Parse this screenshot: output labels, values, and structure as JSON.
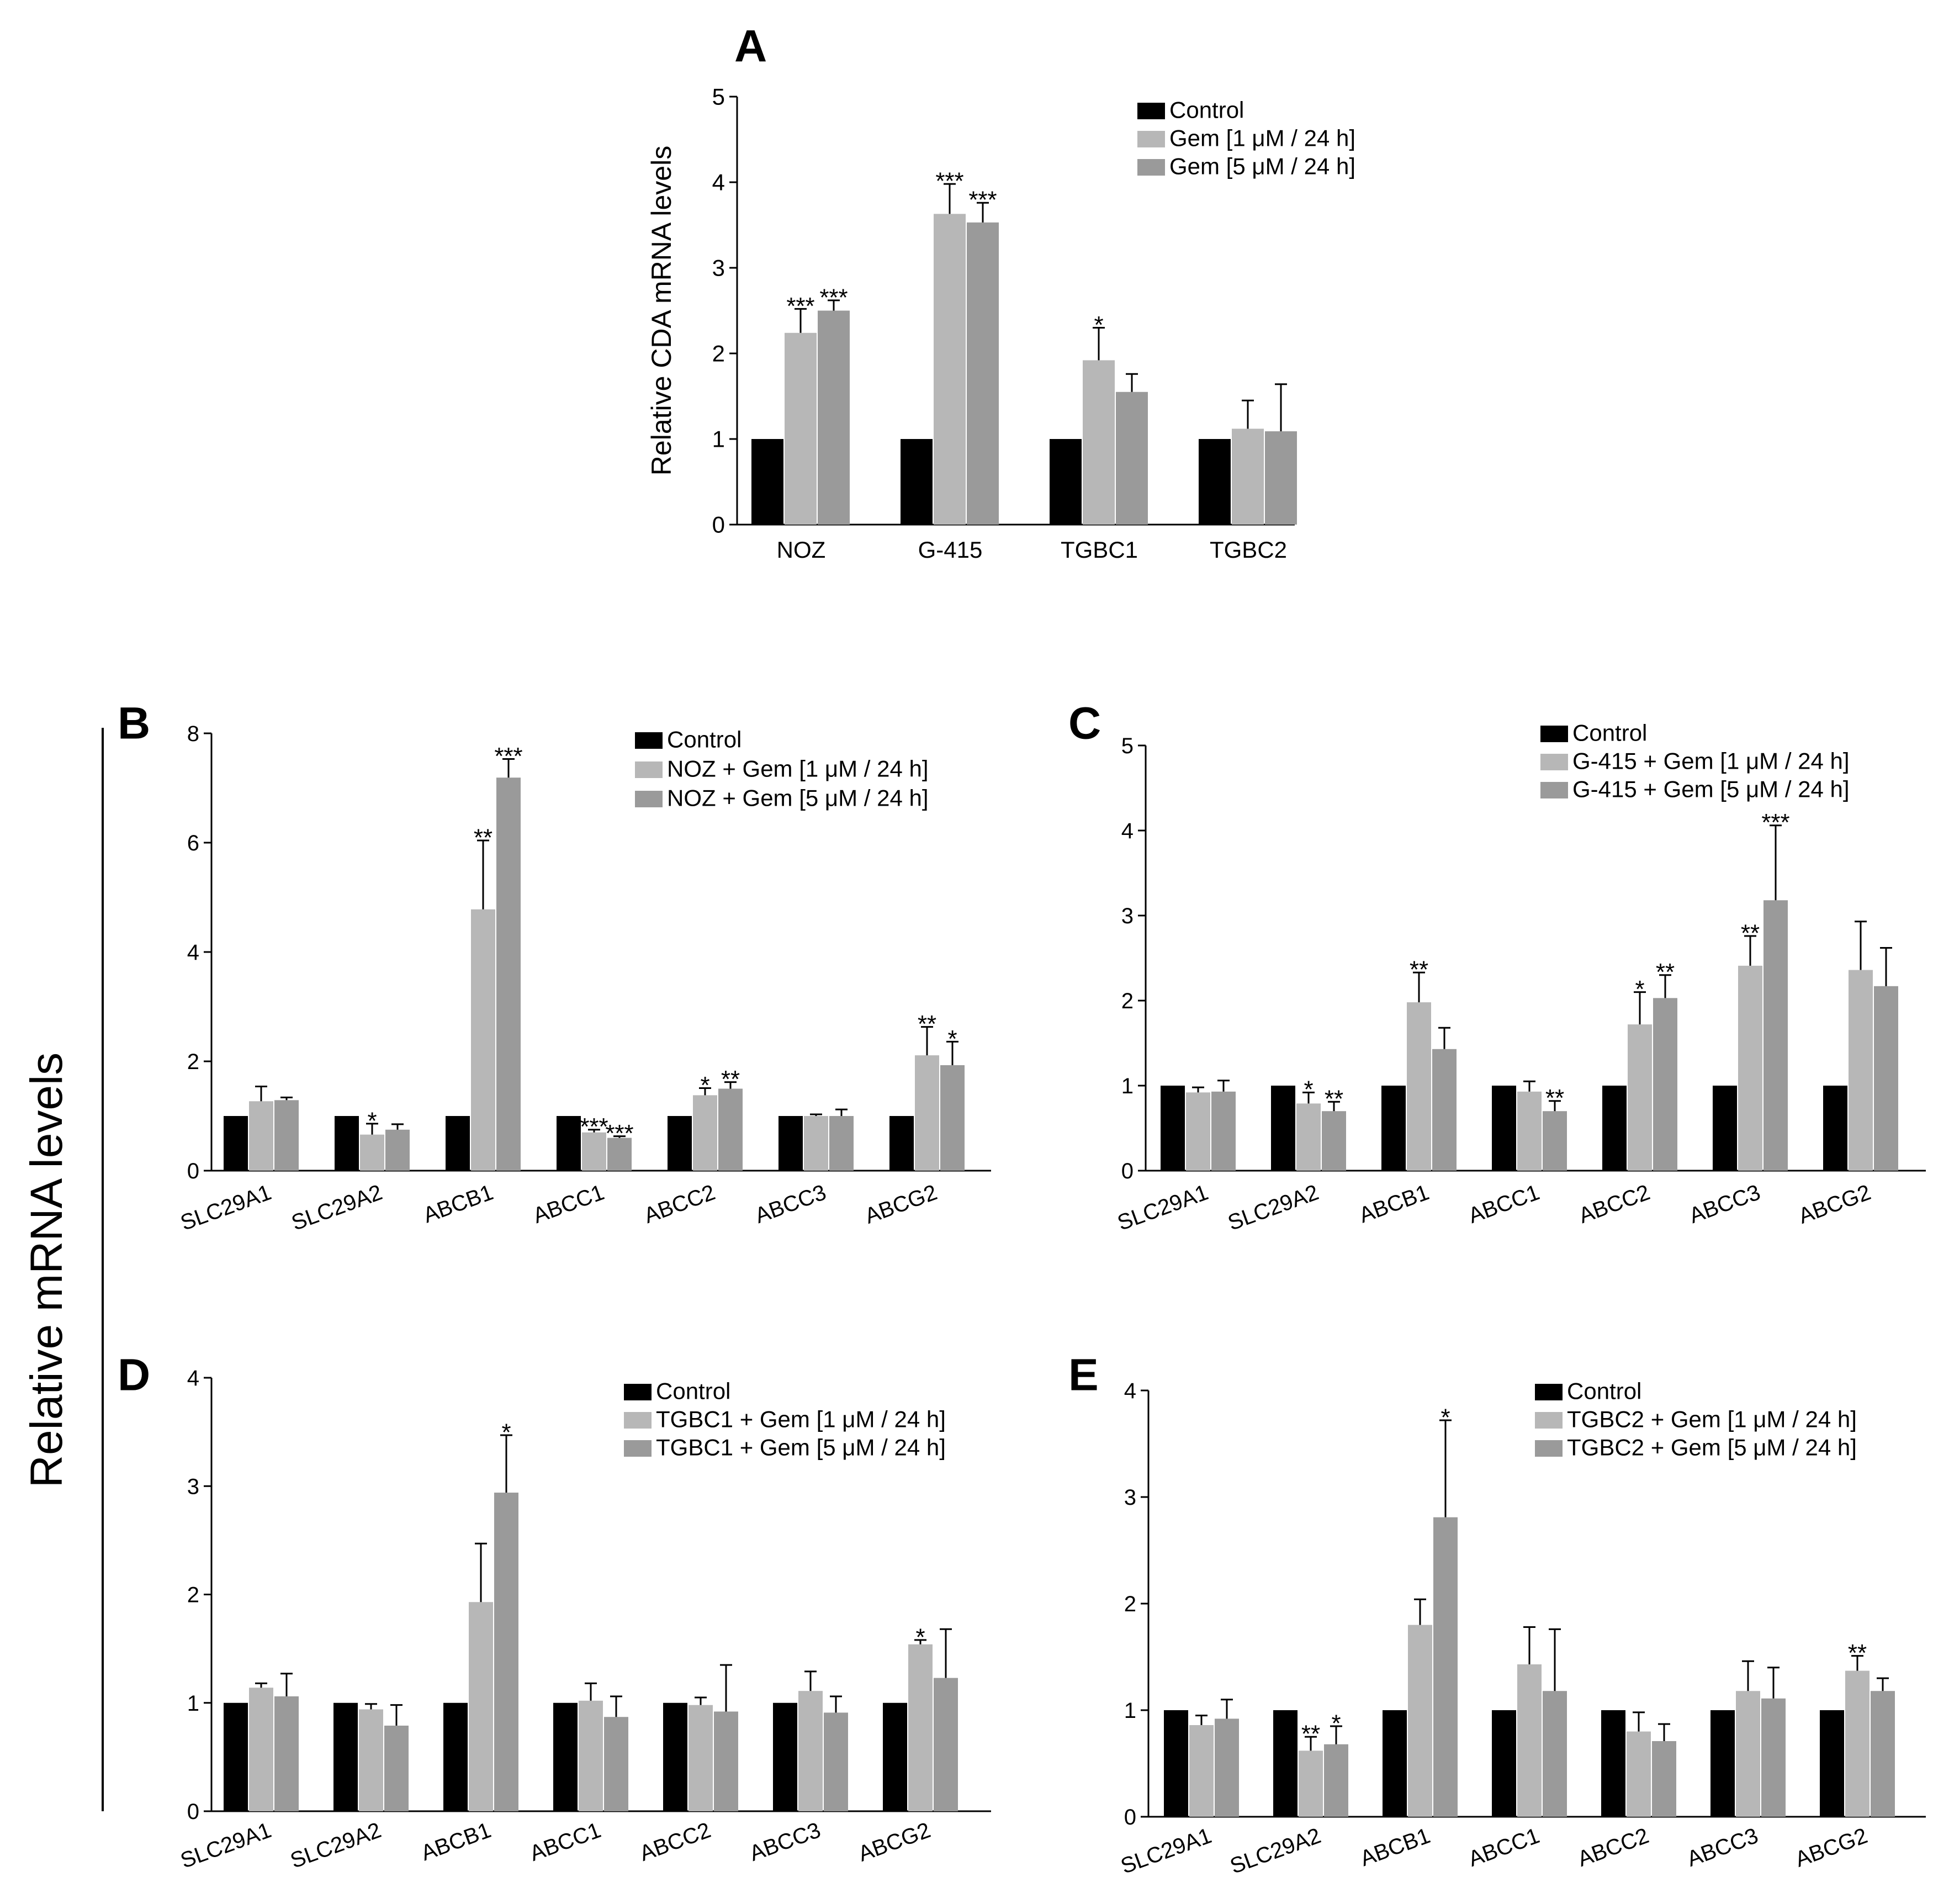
{
  "shared": {
    "ylabel": "Relative mRNA levels",
    "colors": [
      "#000000",
      "#b7b7b7",
      "#9a9a9a"
    ]
  },
  "chart_data": [
    {
      "panel": "A",
      "type": "bar",
      "ylabel": "Relative CDA mRNA levels",
      "ylim": [
        0,
        5
      ],
      "yticks": [
        0,
        1,
        2,
        3,
        4,
        5
      ],
      "categories": [
        "NOZ",
        "G-415",
        "TGBC1",
        "TGBC2"
      ],
      "series": [
        {
          "name": "Control",
          "values": [
            1,
            1,
            1,
            1
          ],
          "errors": [
            0,
            0,
            0,
            0
          ],
          "stars": [
            "",
            "",
            "",
            ""
          ]
        },
        {
          "name": "Gem [1 μM / 24 h]",
          "values": [
            2.24,
            3.63,
            1.92,
            1.12
          ],
          "errors": [
            0.28,
            0.35,
            0.38,
            0.33
          ],
          "stars": [
            "***",
            "***",
            "*",
            ""
          ]
        },
        {
          "name": "Gem [5 μM / 24 h]",
          "values": [
            2.5,
            3.53,
            1.55,
            1.09
          ],
          "errors": [
            0.12,
            0.23,
            0.21,
            0.55
          ],
          "stars": [
            "***",
            "***",
            "",
            ""
          ]
        }
      ],
      "legend_position": "top-right"
    },
    {
      "panel": "B",
      "type": "bar",
      "ylim": [
        0,
        8
      ],
      "yticks": [
        0,
        2,
        4,
        6,
        8
      ],
      "categories": [
        "SLC29A1",
        "SLC29A2",
        "ABCB1",
        "ABCC1",
        "ABCC2",
        "ABCC3",
        "ABCG2"
      ],
      "series": [
        {
          "name": "Control",
          "values": [
            1,
            1,
            1,
            1,
            1,
            1,
            1
          ],
          "errors": [
            0,
            0,
            0,
            0,
            0,
            0,
            0
          ],
          "stars": [
            "",
            "",
            "",
            "",
            "",
            "",
            ""
          ]
        },
        {
          "name": "NOZ + Gem [1 μM / 24 h]",
          "values": [
            1.27,
            0.66,
            4.78,
            0.7,
            1.38,
            1.0,
            2.11
          ],
          "errors": [
            0.27,
            0.2,
            1.26,
            0.05,
            0.13,
            0.03,
            0.52
          ],
          "stars": [
            "",
            "*",
            "**",
            "***",
            "*",
            "",
            "**"
          ]
        },
        {
          "name": "NOZ + Gem [5 μM / 24 h]",
          "values": [
            1.29,
            0.75,
            7.19,
            0.6,
            1.5,
            1.0,
            1.93
          ],
          "errors": [
            0.05,
            0.1,
            0.34,
            0.03,
            0.12,
            0.12,
            0.43
          ],
          "stars": [
            "",
            "",
            "***",
            "***",
            "**",
            "",
            "*"
          ]
        }
      ],
      "legend_position": "top-right"
    },
    {
      "panel": "C",
      "type": "bar",
      "ylim": [
        0,
        5
      ],
      "yticks": [
        0,
        1,
        2,
        3,
        4,
        5
      ],
      "categories": [
        "SLC29A1",
        "SLC29A2",
        "ABCB1",
        "ABCC1",
        "ABCC2",
        "ABCC3",
        "ABCG2"
      ],
      "series": [
        {
          "name": "Control",
          "values": [
            1,
            1,
            1,
            1,
            1,
            1,
            1
          ],
          "errors": [
            0,
            0,
            0,
            0,
            0,
            0,
            0
          ],
          "stars": [
            "",
            "",
            "",
            "",
            "",
            "",
            ""
          ]
        },
        {
          "name": "G-415 + Gem [1 μM / 24 h]",
          "values": [
            0.92,
            0.79,
            1.98,
            0.93,
            1.72,
            2.41,
            2.36
          ],
          "errors": [
            0.06,
            0.13,
            0.35,
            0.12,
            0.38,
            0.35,
            0.57
          ],
          "stars": [
            "",
            "*",
            "**",
            "",
            "*",
            "**",
            ""
          ]
        },
        {
          "name": "G-415 + Gem [5 μM / 24 h]",
          "values": [
            0.93,
            0.7,
            1.43,
            0.7,
            2.03,
            3.18,
            2.17
          ],
          "errors": [
            0.13,
            0.11,
            0.25,
            0.12,
            0.27,
            0.88,
            0.45
          ],
          "stars": [
            "",
            "**",
            "",
            "**",
            "**",
            "***",
            ""
          ]
        }
      ],
      "legend_position": "top-right"
    },
    {
      "panel": "D",
      "type": "bar",
      "ylim": [
        0,
        4
      ],
      "yticks": [
        0,
        1,
        2,
        3,
        4
      ],
      "categories": [
        "SLC29A1",
        "SLC29A2",
        "ABCB1",
        "ABCC1",
        "ABCC2",
        "ABCC3",
        "ABCG2"
      ],
      "series": [
        {
          "name": "Control",
          "values": [
            1,
            1,
            1,
            1,
            1,
            1,
            1
          ],
          "errors": [
            0,
            0,
            0,
            0,
            0,
            0,
            0
          ],
          "stars": [
            "",
            "",
            "",
            "",
            "",
            "",
            ""
          ]
        },
        {
          "name": "TGBC1 + Gem [1 μM / 24 h]",
          "values": [
            1.14,
            0.94,
            1.93,
            1.02,
            0.98,
            1.11,
            1.54
          ],
          "errors": [
            0.04,
            0.05,
            0.54,
            0.16,
            0.07,
            0.18,
            0.04
          ],
          "stars": [
            "",
            "",
            "",
            "",
            "",
            "",
            "*"
          ]
        },
        {
          "name": "TGBC1 + Gem [5 μM / 24 h]",
          "values": [
            1.06,
            0.79,
            2.94,
            0.87,
            0.92,
            0.91,
            1.23
          ],
          "errors": [
            0.21,
            0.19,
            0.53,
            0.19,
            0.43,
            0.15,
            0.45
          ],
          "stars": [
            "",
            "",
            "*",
            "",
            "",
            "",
            ""
          ]
        }
      ],
      "legend_position": "top-right"
    },
    {
      "panel": "E",
      "type": "bar",
      "ylim": [
        0,
        4
      ],
      "yticks": [
        0,
        1,
        2,
        3,
        4
      ],
      "categories": [
        "SLC29A1",
        "SLC29A2",
        "ABCB1",
        "ABCC1",
        "ABCC2",
        "ABCC3",
        "ABCG2"
      ],
      "series": [
        {
          "name": "Control",
          "values": [
            1,
            1,
            1,
            1,
            1,
            1,
            1
          ],
          "errors": [
            0,
            0,
            0,
            0,
            0,
            0,
            0
          ],
          "stars": [
            "",
            "",
            "",
            "",
            "",
            "",
            ""
          ]
        },
        {
          "name": "TGBC2 + Gem [1 μM / 24 h]",
          "values": [
            0.86,
            0.62,
            1.8,
            1.43,
            0.8,
            1.18,
            1.37
          ],
          "errors": [
            0.09,
            0.13,
            0.24,
            0.35,
            0.18,
            0.28,
            0.14
          ],
          "stars": [
            "",
            "**",
            "",
            "",
            "",
            "",
            "**"
          ]
        },
        {
          "name": "TGBC2 + Gem [5 μM / 24 h]",
          "values": [
            0.92,
            0.68,
            2.81,
            1.18,
            0.71,
            1.11,
            1.18
          ],
          "errors": [
            0.18,
            0.17,
            0.91,
            0.58,
            0.16,
            0.29,
            0.12
          ],
          "stars": [
            "",
            "*",
            "*",
            "",
            "",
            "",
            ""
          ]
        }
      ],
      "legend_position": "top-right"
    }
  ]
}
